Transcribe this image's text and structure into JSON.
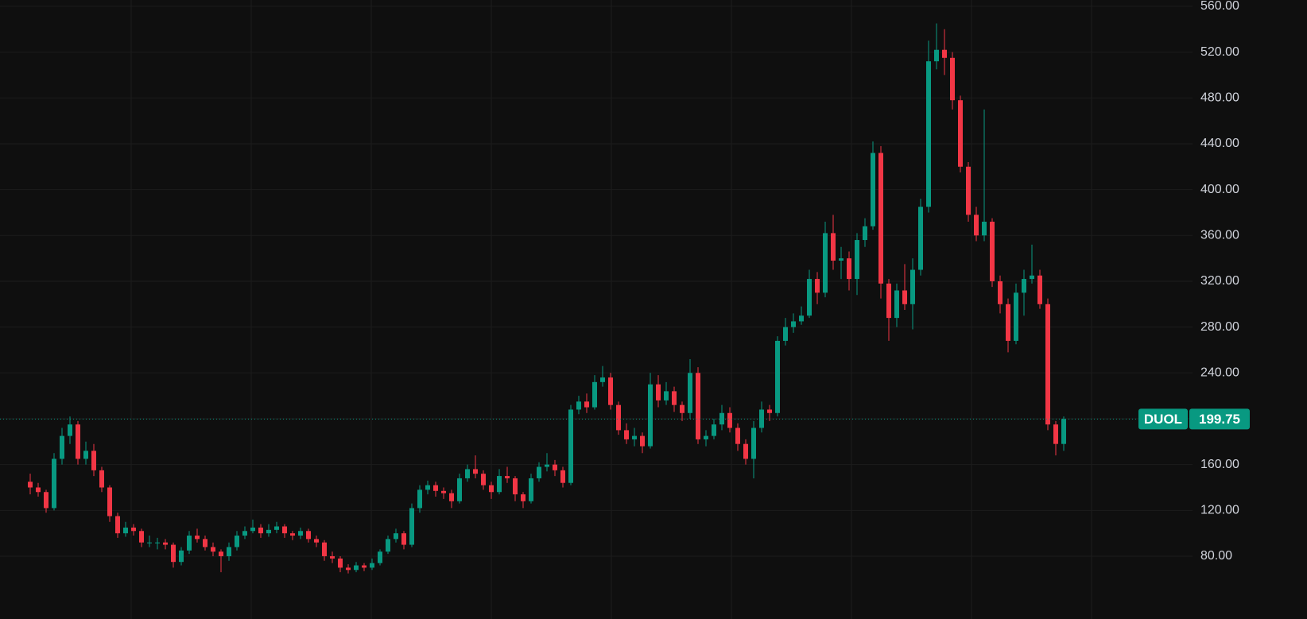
{
  "chart_data": {
    "type": "candlestick",
    "up_color": "#089981",
    "down_color": "#f23645",
    "ylim": [
      25.2,
      565.5
    ],
    "yticks": [
      {
        "value": 80,
        "label": "80.00"
      },
      {
        "value": 120,
        "label": "120.00"
      },
      {
        "value": 160,
        "label": "160.00"
      },
      {
        "value": 200,
        "label": "200.00"
      },
      {
        "value": 240,
        "label": "240.00"
      },
      {
        "value": 280,
        "label": "280.00"
      },
      {
        "value": 320,
        "label": "320.00"
      },
      {
        "value": 360,
        "label": "360.00"
      },
      {
        "value": 400,
        "label": "400.00"
      },
      {
        "value": 440,
        "label": "440.00"
      },
      {
        "value": 480,
        "label": "480.00"
      },
      {
        "value": 520,
        "label": "520.00"
      },
      {
        "value": 560,
        "label": "560.00"
      }
    ],
    "grid": true,
    "price_label": {
      "symbol": "DUOL",
      "price": 199.75
    },
    "candles": [
      [
        145,
        152,
        134,
        140
      ],
      [
        140,
        144,
        132,
        136
      ],
      [
        136,
        138,
        118,
        122
      ],
      [
        122,
        170,
        120,
        165
      ],
      [
        165,
        192,
        160,
        185
      ],
      [
        185,
        202,
        178,
        195
      ],
      [
        195,
        198,
        160,
        165
      ],
      [
        165,
        180,
        160,
        172
      ],
      [
        172,
        178,
        150,
        155
      ],
      [
        155,
        158,
        136,
        140
      ],
      [
        140,
        142,
        110,
        115
      ],
      [
        115,
        118,
        96,
        100
      ],
      [
        100,
        110,
        97,
        105
      ],
      [
        105,
        108,
        98,
        102
      ],
      [
        102,
        104,
        88,
        92
      ],
      [
        92,
        98,
        88,
        92
      ],
      [
        92,
        96,
        86,
        92
      ],
      [
        92,
        95,
        86,
        90
      ],
      [
        90,
        92,
        70,
        75
      ],
      [
        75,
        88,
        72,
        85
      ],
      [
        85,
        102,
        82,
        98
      ],
      [
        98,
        104,
        92,
        95
      ],
      [
        95,
        98,
        85,
        88
      ],
      [
        88,
        92,
        80,
        84
      ],
      [
        84,
        86,
        66,
        80
      ],
      [
        80,
        92,
        76,
        88
      ],
      [
        88,
        102,
        85,
        98
      ],
      [
        98,
        106,
        95,
        102
      ],
      [
        102,
        112,
        100,
        105
      ],
      [
        105,
        108,
        96,
        100
      ],
      [
        100,
        108,
        97,
        103
      ],
      [
        103,
        110,
        100,
        106
      ],
      [
        106,
        108,
        96,
        100
      ],
      [
        100,
        102,
        94,
        98
      ],
      [
        98,
        105,
        95,
        102
      ],
      [
        102,
        104,
        92,
        95
      ],
      [
        95,
        98,
        88,
        92
      ],
      [
        92,
        94,
        76,
        80
      ],
      [
        80,
        84,
        74,
        78
      ],
      [
        78,
        80,
        66,
        70
      ],
      [
        70,
        73,
        65,
        68
      ],
      [
        68,
        75,
        66,
        72
      ],
      [
        72,
        74,
        67,
        70
      ],
      [
        70,
        78,
        68,
        74
      ],
      [
        74,
        86,
        72,
        84
      ],
      [
        84,
        98,
        82,
        95
      ],
      [
        95,
        104,
        92,
        100
      ],
      [
        100,
        102,
        86,
        90
      ],
      [
        90,
        126,
        88,
        122
      ],
      [
        122,
        142,
        118,
        138
      ],
      [
        138,
        146,
        134,
        142
      ],
      [
        142,
        145,
        132,
        137
      ],
      [
        137,
        140,
        130,
        135
      ],
      [
        135,
        138,
        122,
        128
      ],
      [
        128,
        152,
        126,
        148
      ],
      [
        148,
        160,
        145,
        156
      ],
      [
        156,
        168,
        148,
        152
      ],
      [
        152,
        155,
        138,
        142
      ],
      [
        142,
        145,
        130,
        136
      ],
      [
        136,
        156,
        134,
        150
      ],
      [
        150,
        158,
        144,
        148
      ],
      [
        148,
        150,
        128,
        134
      ],
      [
        134,
        136,
        122,
        128
      ],
      [
        128,
        152,
        126,
        148
      ],
      [
        148,
        162,
        145,
        158
      ],
      [
        158,
        170,
        154,
        160
      ],
      [
        160,
        164,
        150,
        155
      ],
      [
        155,
        158,
        140,
        144
      ],
      [
        144,
        212,
        142,
        208
      ],
      [
        208,
        220,
        204,
        215
      ],
      [
        215,
        222,
        205,
        210
      ],
      [
        210,
        238,
        208,
        232
      ],
      [
        232,
        246,
        228,
        236
      ],
      [
        236,
        240,
        208,
        212
      ],
      [
        212,
        215,
        186,
        190
      ],
      [
        190,
        196,
        178,
        182
      ],
      [
        182,
        192,
        176,
        185
      ],
      [
        185,
        188,
        170,
        176
      ],
      [
        176,
        240,
        174,
        230
      ],
      [
        230,
        238,
        210,
        216
      ],
      [
        216,
        232,
        212,
        224
      ],
      [
        224,
        228,
        206,
        212
      ],
      [
        212,
        215,
        198,
        205
      ],
      [
        205,
        252,
        200,
        240
      ],
      [
        240,
        245,
        178,
        182
      ],
      [
        182,
        190,
        176,
        185
      ],
      [
        185,
        200,
        182,
        195
      ],
      [
        195,
        212,
        190,
        205
      ],
      [
        205,
        210,
        188,
        192
      ],
      [
        192,
        196,
        172,
        178
      ],
      [
        178,
        182,
        160,
        165
      ],
      [
        165,
        198,
        148,
        192
      ],
      [
        192,
        215,
        188,
        208
      ],
      [
        208,
        212,
        198,
        205
      ],
      [
        205,
        272,
        202,
        268
      ],
      [
        268,
        288,
        264,
        280
      ],
      [
        280,
        292,
        275,
        285
      ],
      [
        285,
        298,
        282,
        290
      ],
      [
        290,
        330,
        288,
        322
      ],
      [
        322,
        328,
        300,
        310
      ],
      [
        310,
        372,
        306,
        362
      ],
      [
        362,
        378,
        330,
        338
      ],
      [
        338,
        350,
        322,
        340
      ],
      [
        340,
        346,
        312,
        322
      ],
      [
        322,
        362,
        308,
        356
      ],
      [
        356,
        375,
        350,
        368
      ],
      [
        368,
        442,
        365,
        432
      ],
      [
        432,
        438,
        305,
        318
      ],
      [
        318,
        322,
        268,
        288
      ],
      [
        288,
        318,
        280,
        312
      ],
      [
        312,
        335,
        295,
        300
      ],
      [
        300,
        340,
        278,
        330
      ],
      [
        330,
        392,
        325,
        385
      ],
      [
        385,
        530,
        380,
        512
      ],
      [
        512,
        545,
        505,
        522
      ],
      [
        522,
        540,
        500,
        515
      ],
      [
        515,
        520,
        470,
        478
      ],
      [
        478,
        482,
        415,
        420
      ],
      [
        420,
        424,
        372,
        378
      ],
      [
        378,
        385,
        355,
        360
      ],
      [
        360,
        470,
        355,
        372
      ],
      [
        372,
        375,
        315,
        320
      ],
      [
        320,
        325,
        292,
        300
      ],
      [
        300,
        305,
        258,
        268
      ],
      [
        268,
        318,
        265,
        310
      ],
      [
        310,
        330,
        290,
        322
      ],
      [
        322,
        352,
        318,
        325
      ],
      [
        325,
        330,
        296,
        300
      ],
      [
        300,
        305,
        190,
        195
      ],
      [
        195,
        198,
        168,
        178
      ],
      [
        178,
        202,
        172,
        199.75
      ]
    ]
  }
}
